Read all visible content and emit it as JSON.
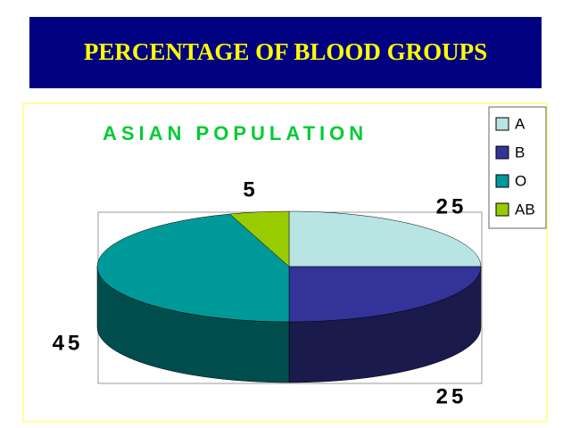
{
  "header": {
    "title": "PERCENTAGE OF BLOOD GROUPS"
  },
  "chart_data": {
    "type": "pie3d",
    "title": "ASIAN POPULATION",
    "categories": [
      "A",
      "B",
      "O",
      "AB"
    ],
    "values": [
      25,
      25,
      45,
      5
    ],
    "colors": [
      "#b8e4e4",
      "#333399",
      "#009999",
      "#99cc00"
    ],
    "legend": "top-right"
  }
}
